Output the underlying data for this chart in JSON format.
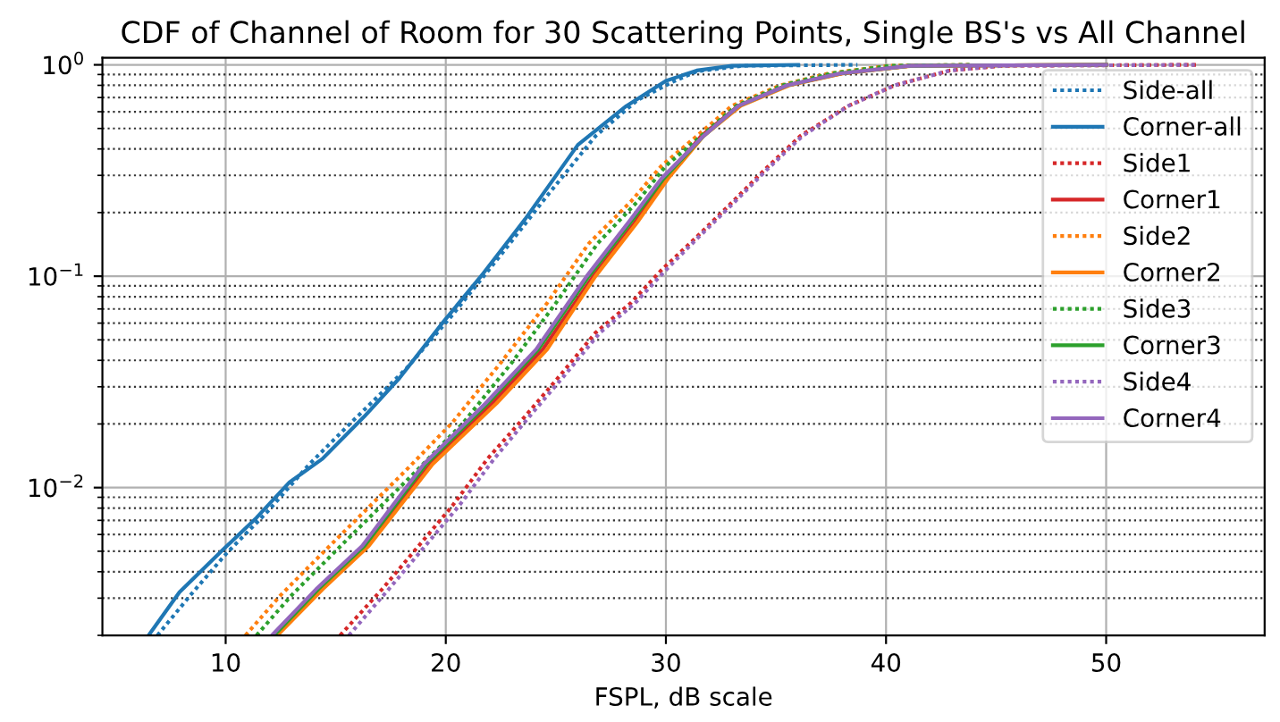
{
  "chart_data": {
    "type": "line",
    "title": "CDF of Channel of Room for 30 Scattering Points, Single BS's vs All Channel",
    "xlabel": "FSPL, dB scale",
    "log": "y",
    "grid": true,
    "legend": "top right",
    "xlim": [
      4.4,
      57.2
    ],
    "ylim": [
      0.002,
      1.08
    ],
    "xticks": [
      10,
      20,
      30,
      40,
      50
    ],
    "yticks": [
      {
        "value": 0.01,
        "label": "10$^{−2}$"
      },
      {
        "value": 0.1,
        "label": "10$^{−1}$"
      },
      {
        "value": 1,
        "label": "10$^{0}$"
      }
    ],
    "series": [
      {
        "name": "Side-all",
        "color": "#1f77b4",
        "line_style": "dotted",
        "x": [
          6.9,
          8.4,
          10.05,
          11.9,
          13.8,
          15.7,
          18.2,
          20.3,
          22.5,
          24.6,
          26.8,
          28.7,
          30.3,
          31.4,
          33.5,
          38.7
        ],
        "values": [
          0.002,
          0.0031,
          0.0049,
          0.0077,
          0.0129,
          0.0203,
          0.0365,
          0.0655,
          0.126,
          0.24,
          0.46,
          0.68,
          0.83,
          0.93,
          0.99,
          1.0
        ]
      },
      {
        "name": "Corner-all",
        "color": "#1f77b4",
        "line_style": "solid",
        "x": [
          6.5,
          7.9,
          9.8,
          11.4,
          12.9,
          14.4,
          16.3,
          17.9,
          19.9,
          21.7,
          23.6,
          26.0,
          28.2,
          30.0,
          31.4,
          33.0,
          36.0
        ],
        "values": [
          0.002,
          0.0032,
          0.005,
          0.0072,
          0.0106,
          0.0137,
          0.0217,
          0.033,
          0.061,
          0.103,
          0.186,
          0.418,
          0.638,
          0.84,
          0.94,
          0.99,
          1.0
        ]
      },
      {
        "name": "Side1",
        "color": "#d62728",
        "line_style": "dotted",
        "x": [
          15.2,
          17.1,
          18.7,
          20.3,
          21.9,
          23.6,
          25.2,
          26.8,
          28.4,
          29.8,
          31.3,
          32.9,
          34.5,
          36.1,
          38.3,
          40.4,
          42.9,
          45.3,
          54.1
        ],
        "values": [
          0.002,
          0.0033,
          0.0052,
          0.0082,
          0.0137,
          0.0217,
          0.034,
          0.054,
          0.0746,
          0.107,
          0.15,
          0.218,
          0.32,
          0.46,
          0.64,
          0.8,
          0.94,
          0.99,
          1.0
        ]
      },
      {
        "name": "Corner1",
        "color": "#d62728",
        "line_style": "solid",
        "x": [
          12.3,
          14.3,
          16.4,
          19.3,
          22.1,
          24.4,
          26.7,
          28.6,
          30.0,
          31.6,
          33.3,
          35.5,
          38.0,
          41.1,
          50.0
        ],
        "values": [
          0.002,
          0.0033,
          0.0053,
          0.0129,
          0.025,
          0.045,
          0.1,
          0.18,
          0.29,
          0.46,
          0.64,
          0.8,
          0.91,
          0.99,
          1.0
        ]
      },
      {
        "name": "Side2",
        "color": "#ff7f0e",
        "line_style": "dotted",
        "x": [
          10.9,
          12.5,
          14.4,
          16.3,
          18.2,
          20.3,
          22.5,
          24.6,
          26.5,
          28.4,
          29.8,
          31.4,
          33.0,
          35.2,
          37.4,
          40.1,
          43.8
        ],
        "values": [
          0.002,
          0.0031,
          0.0049,
          0.0077,
          0.0121,
          0.0203,
          0.039,
          0.0746,
          0.143,
          0.225,
          0.333,
          0.46,
          0.64,
          0.8,
          0.91,
          0.99,
          1.0
        ]
      },
      {
        "name": "Corner2",
        "color": "#ff7f0e",
        "line_style": "solid",
        "x": [
          12.35,
          14.4,
          16.5,
          19.4,
          22.3,
          24.6,
          26.8,
          28.7,
          30.1,
          31.7,
          33.4,
          35.6,
          38.0,
          41.2,
          50.0
        ],
        "values": [
          0.002,
          0.0033,
          0.0053,
          0.0129,
          0.025,
          0.045,
          0.1,
          0.18,
          0.29,
          0.46,
          0.64,
          0.8,
          0.91,
          0.99,
          1.0
        ]
      },
      {
        "name": "Side3",
        "color": "#2ca02c",
        "line_style": "dotted",
        "x": [
          11.4,
          13.0,
          14.9,
          16.8,
          18.7,
          20.8,
          23.0,
          25.0,
          26.9,
          28.7,
          30.0,
          31.6,
          33.2,
          35.3,
          37.5,
          40.2,
          43.8
        ],
        "values": [
          0.002,
          0.0031,
          0.0049,
          0.0077,
          0.0121,
          0.0203,
          0.039,
          0.0746,
          0.143,
          0.225,
          0.333,
          0.46,
          0.64,
          0.8,
          0.91,
          0.99,
          1.0
        ]
      },
      {
        "name": "Corner3",
        "color": "#2ca02c",
        "line_style": "solid",
        "x": [
          12.2,
          14.2,
          16.3,
          19.1,
          21.9,
          24.2,
          26.5,
          28.4,
          29.9,
          31.7,
          33.3,
          35.5,
          37.9,
          41.1,
          50.0
        ],
        "values": [
          0.002,
          0.0033,
          0.0053,
          0.0129,
          0.025,
          0.045,
          0.1,
          0.18,
          0.29,
          0.46,
          0.64,
          0.8,
          0.91,
          0.99,
          1.0
        ]
      },
      {
        "name": "Side4",
        "color": "#9467bd",
        "line_style": "dotted",
        "x": [
          15.6,
          17.4,
          19.0,
          20.6,
          22.2,
          23.8,
          25.4,
          27.0,
          28.6,
          30.0,
          31.4,
          33.0,
          34.6,
          36.2,
          38.3,
          40.4,
          42.9,
          45.3,
          54.1
        ],
        "values": [
          0.002,
          0.0033,
          0.0052,
          0.0082,
          0.0137,
          0.0217,
          0.034,
          0.054,
          0.0746,
          0.107,
          0.15,
          0.218,
          0.32,
          0.46,
          0.64,
          0.8,
          0.94,
          0.99,
          1.0
        ]
      },
      {
        "name": "Corner4",
        "color": "#9467bd",
        "line_style": "solid",
        "x": [
          12.1,
          14.1,
          16.2,
          19.0,
          21.8,
          24.1,
          26.4,
          28.3,
          29.8,
          31.7,
          33.3,
          35.5,
          37.9,
          41.1,
          50.0
        ],
        "values": [
          0.002,
          0.0033,
          0.0053,
          0.0129,
          0.025,
          0.045,
          0.1,
          0.18,
          0.29,
          0.46,
          0.64,
          0.8,
          0.91,
          0.99,
          1.0
        ]
      }
    ]
  }
}
